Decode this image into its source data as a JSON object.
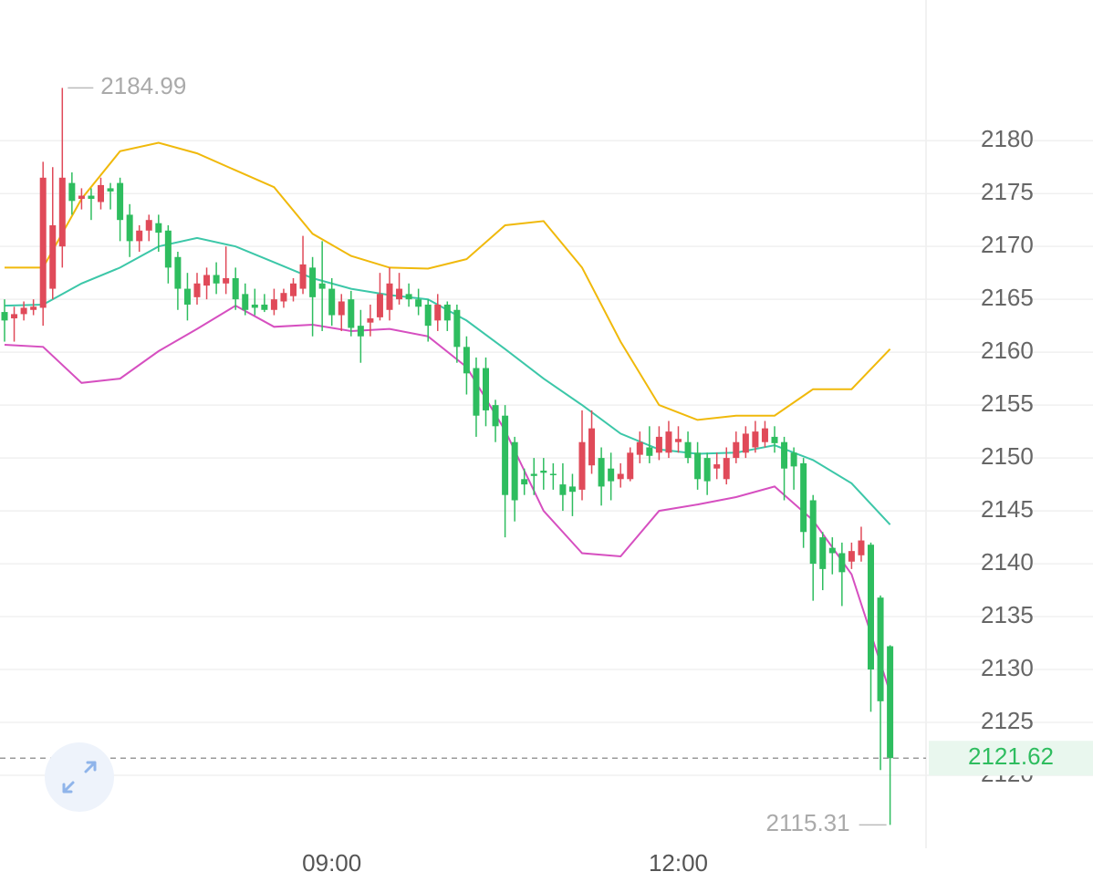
{
  "chart_data": {
    "type": "candlestick",
    "categories": [
      null,
      null,
      null,
      null,
      null,
      null,
      null,
      null,
      null,
      null,
      null,
      null,
      null,
      null,
      null,
      null,
      null,
      null,
      null,
      null,
      null,
      null,
      null,
      null,
      null,
      null,
      null,
      null,
      null,
      null,
      null,
      null,
      null,
      null,
      "09:00",
      null,
      null,
      null,
      null,
      null,
      null,
      null,
      null,
      null,
      null,
      null,
      null,
      null,
      null,
      null,
      null,
      null,
      null,
      null,
      null,
      null,
      null,
      null,
      null,
      null,
      null,
      null,
      null,
      null,
      null,
      null,
      null,
      null,
      null,
      null,
      "12:00",
      null,
      null,
      null,
      null,
      null,
      null,
      null,
      null,
      null,
      null,
      null,
      null,
      null,
      null,
      null,
      null,
      null,
      null,
      null,
      null,
      null,
      null
    ],
    "open": [
      2163.8,
      2163.2,
      2163.6,
      2164,
      2164.2,
      2166,
      2170,
      2176,
      2174.5,
      2174.8,
      2174.2,
      2175.5,
      2176,
      2173,
      2170.5,
      2171.5,
      2172.2,
      2171.5,
      2169,
      2166,
      2165.2,
      2166.3,
      2167.3,
      2166.5,
      2167,
      2165.5,
      2164.5,
      2164.5,
      2164,
      2164.8,
      2165.3,
      2166,
      2168,
      2166.5,
      2166,
      2163.5,
      2165,
      2162.5,
      2162.8,
      2163.3,
      2164,
      2165,
      2165.5,
      2165,
      2164.5,
      2163,
      2164.5,
      2164,
      2160.5,
      2158.5,
      2158.5,
      2155,
      2154,
      2151.5,
      2148,
      2148.5,
      2148.8,
      2148.5,
      2147.5,
      2147.3,
      2147,
      2149.3,
      2150,
      2149,
      2148,
      2148,
      2150.3,
      2151,
      2150.5,
      2150.5,
      2151.5,
      2151.5,
      2150.5,
      2150,
      2149,
      2148,
      2150,
      2150.5,
      2151,
      2151.5,
      2152,
      2151.5,
      2150.5,
      2149.5,
      2146,
      2142.5,
      2141.5,
      2141,
      2140.2,
      2140.8,
      2141.8,
      2136.8,
      2132.2
    ],
    "high": [
      2165,
      2164.3,
      2164.8,
      2165,
      2178,
      2177.5,
      2184.99,
      2177,
      2175.5,
      2175.5,
      2176.5,
      2176,
      2176.5,
      2174,
      2172,
      2173,
      2173,
      2172,
      2169.5,
      2167.5,
      2167.5,
      2168,
      2168.5,
      2170,
      2168,
      2166.5,
      2166,
      2165.5,
      2166,
      2166,
      2167,
      2171,
      2169,
      2170.5,
      2167,
      2165.5,
      2165.8,
      2164,
      2164.5,
      2167.5,
      2168,
      2167.5,
      2166.5,
      2166,
      2165,
      2165.5,
      2164.8,
      2164.5,
      2161.5,
      2159.5,
      2159.5,
      2155.5,
      2155,
      2152,
      2149,
      2150,
      2150,
      2149.5,
      2149.5,
      2148.5,
      2154.5,
      2154.5,
      2151,
      2150.5,
      2149.5,
      2151,
      2152.5,
      2153,
      2153,
      2153.5,
      2153,
      2152.5,
      2151.5,
      2150.5,
      2150.5,
      2151,
      2152.5,
      2153,
      2153.5,
      2153.5,
      2153,
      2152,
      2151,
      2150,
      2146.5,
      2143,
      2142.5,
      2142,
      2142,
      2143.5,
      2142,
      2137,
      2132.3
    ],
    "low": [
      2161,
      2161,
      2163,
      2163.5,
      2162.5,
      2165,
      2168,
      2173,
      2173.5,
      2172.5,
      2173.5,
      2173.5,
      2170.5,
      2169,
      2169.5,
      2170.5,
      2169.5,
      2166.5,
      2164,
      2163,
      2164.5,
      2165,
      2165.5,
      2165.5,
      2164,
      2163.5,
      2163.5,
      2163.8,
      2163.5,
      2164.2,
      2164.8,
      2165.5,
      2161.5,
      2162,
      2162.5,
      2162,
      2161.5,
      2159,
      2161.5,
      2163,
      2163,
      2164.5,
      2164.3,
      2163.5,
      2161,
      2162,
      2162,
      2159,
      2156,
      2152,
      2153,
      2151.5,
      2142.5,
      2144,
      2146.5,
      2146.5,
      2147,
      2147,
      2145,
      2144.5,
      2146,
      2148.5,
      2145.5,
      2146,
      2147.2,
      2147.8,
      2149.5,
      2149.5,
      2149.8,
      2150,
      2150.5,
      2149.5,
      2147,
      2146.5,
      2148,
      2147.5,
      2149.5,
      2150,
      2150.5,
      2151,
      2150.5,
      2146,
      2147,
      2141.5,
      2136.5,
      2137.5,
      2139,
      2136,
      2139.5,
      2140.2,
      2126,
      2120.5,
      2115.31
    ],
    "close": [
      2163,
      2163.6,
      2164.2,
      2164.3,
      2176.5,
      2172,
      2176.5,
      2174.3,
      2174.8,
      2174.5,
      2175.8,
      2175.2,
      2172.5,
      2170.5,
      2171.5,
      2172.5,
      2171.3,
      2168,
      2166,
      2164.5,
      2166.5,
      2167.3,
      2166.5,
      2167,
      2165,
      2164,
      2164.2,
      2164,
      2165,
      2165.6,
      2166.5,
      2168.3,
      2165.2,
      2166,
      2163.5,
      2164.8,
      2162.3,
      2161.5,
      2163.2,
      2165.5,
      2166.5,
      2166,
      2165,
      2164.3,
      2162.5,
      2164.5,
      2163,
      2160.5,
      2158,
      2154,
      2154.5,
      2153,
      2146.5,
      2146,
      2147.5,
      2148.3,
      2148.6,
      2148.4,
      2146.5,
      2146.8,
      2151.5,
      2152.8,
      2147.3,
      2147.8,
      2148.5,
      2150.5,
      2151.5,
      2150.2,
      2152,
      2152.5,
      2151.8,
      2150,
      2148,
      2147.8,
      2149.4,
      2150,
      2151.5,
      2152.3,
      2152.5,
      2152.8,
      2151.4,
      2149,
      2149.2,
      2143,
      2140,
      2139.5,
      2141,
      2139.2,
      2141.2,
      2142.2,
      2130,
      2127,
      2121.62
    ],
    "up_color": "#e04a59",
    "down_color": "#2ebd5f",
    "series": [
      {
        "color": "#f0b90b",
        "x": [
          0,
          4,
          8,
          12,
          16,
          20,
          24,
          28,
          32,
          36,
          40,
          44,
          48,
          52,
          56,
          60,
          64,
          68,
          72,
          76,
          80,
          84,
          88,
          92
        ],
        "values": [
          2168,
          2168,
          2174.5,
          2179,
          2179.8,
          2178.8,
          2177.2,
          2175.6,
          2171.2,
          2169.1,
          2168,
          2167.9,
          2168.8,
          2172,
          2172.4,
          2168,
          2161,
          2155,
          2153.6,
          2154,
          2154,
          2156.5,
          2156.5,
          2160.3
        ]
      },
      {
        "color": "#3cc7a8",
        "x": [
          0,
          4,
          8,
          12,
          16,
          20,
          24,
          28,
          32,
          36,
          40,
          44,
          48,
          52,
          56,
          60,
          64,
          68,
          72,
          76,
          80,
          84,
          88,
          92
        ],
        "values": [
          2164.4,
          2164.5,
          2166.5,
          2168,
          2170,
          2170.8,
          2170,
          2168.5,
          2167,
          2166,
          2165.4,
          2165,
          2163,
          2160.3,
          2157.5,
          2155,
          2152.3,
          2150.8,
          2150.4,
          2150.5,
          2151.2,
          2149.8,
          2147.6,
          2143.7
        ]
      },
      {
        "color": "#d64fc0",
        "x": [
          0,
          4,
          8,
          12,
          16,
          20,
          24,
          28,
          32,
          36,
          40,
          44,
          48,
          52,
          56,
          60,
          64,
          68,
          72,
          76,
          80,
          84,
          88,
          92
        ],
        "values": [
          2160.7,
          2160.5,
          2157.1,
          2157.5,
          2160.1,
          2162.2,
          2164.4,
          2162.4,
          2162.6,
          2162,
          2162.2,
          2161.5,
          2158.6,
          2152.6,
          2145,
          2141,
          2140.7,
          2145,
          2145.6,
          2146.3,
          2147.3,
          2144.1,
          2139,
          2127.8
        ]
      }
    ],
    "ylim": [
      2113.1,
      2193.3
    ],
    "yticks": [
      2120,
      2125,
      2130,
      2135,
      2140,
      2145,
      2150,
      2155,
      2160,
      2165,
      2170,
      2175,
      2180
    ],
    "grid": true
  }
}
